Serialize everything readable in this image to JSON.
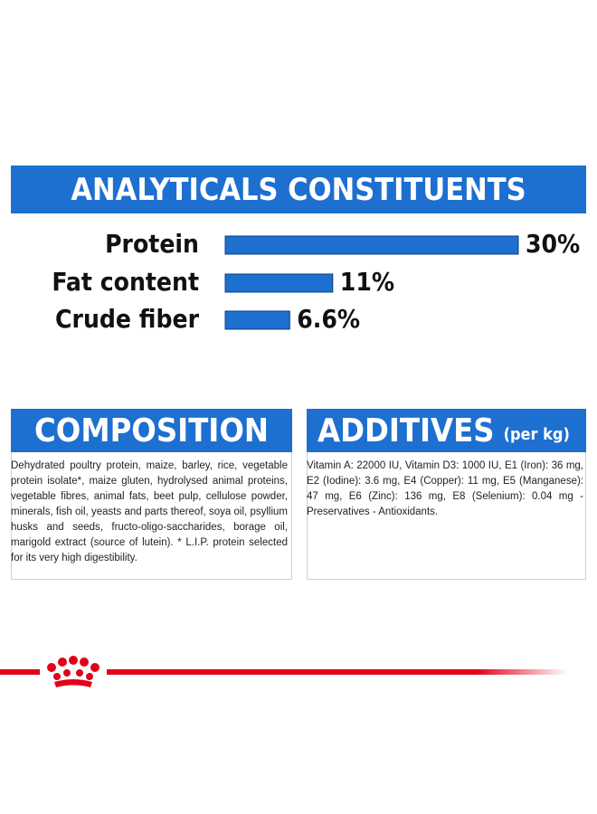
{
  "chart_data": {
    "type": "bar",
    "title": "ANALYTICALS CONSTITUENTS",
    "categories": [
      "Protein",
      "Fat content",
      "Crude fiber"
    ],
    "values": [
      30,
      11,
      6.6
    ],
    "value_labels": [
      "30%",
      "11%",
      "6.6%"
    ],
    "color": "#1d6fd0"
  },
  "composition": {
    "title": "COMPOSITION",
    "text": "Dehydrated poultry protein, maize, barley, rice, vegetable protein isolate*, maize gluten, hydrolysed animal proteins, vegetable fibres, animal fats, beet pulp, cellulose powder, minerals, fish oil, yeasts and parts thereof, soya oil, psyllium husks and seeds, fructo-oligo-saccharides, borage oil, marigold extract (source of lutein). * L.I.P. protein selected for its very high digestibility."
  },
  "additives": {
    "title": "ADDITIVES",
    "unit": "(per kg)",
    "text": "Vitamin A: 22000 IU, Vitamin D3: 1000 IU, E1 (Iron): 36 mg, E2 (Iodine): 3.6 mg, E4 (Copper): 11 mg, E5 (Manganese): 47 mg, E6 (Zinc): 136 mg, E8 (Selenium): 0.04 mg - Preservatives - Antioxidants."
  }
}
